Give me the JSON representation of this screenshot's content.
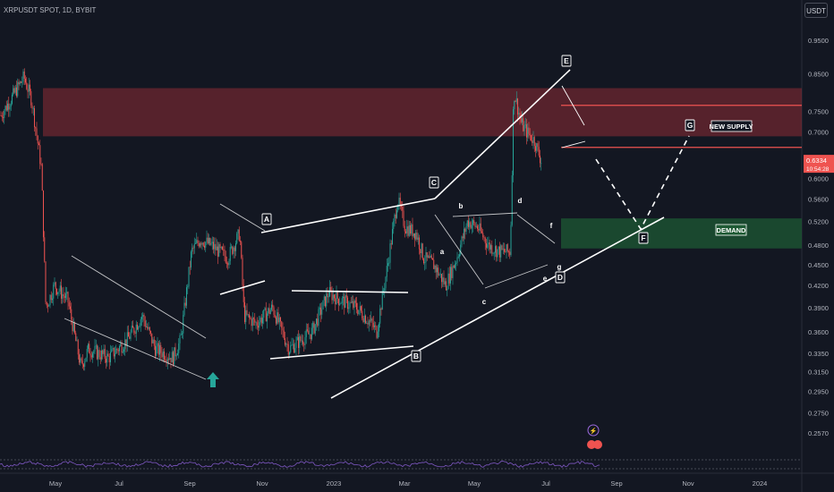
{
  "title": "XRPUSDT SPOT, 1D, BYBIT",
  "currency_label": "USDT",
  "price_badge": {
    "price": "0.6334",
    "countdown": "10:54:28"
  },
  "colors": {
    "bg": "#131722",
    "up": "#26a69a",
    "down": "#ef5350",
    "supply": "#8e2b35",
    "demand": "#1e5a34",
    "line": "#ffffff",
    "axis_text": "#b2b5be",
    "rsi": "#7e57c2"
  },
  "zones": {
    "supply_label": "NEW SUPPLY",
    "demand_label": "DEMAND"
  },
  "wave_labels": [
    "A",
    "B",
    "C",
    "D",
    "E",
    "F",
    "G",
    "a",
    "b",
    "c",
    "d",
    "e",
    "f",
    "g"
  ],
  "chart_data": {
    "type": "candlestick",
    "x_ticks": [
      "May",
      "Jul",
      "Sep",
      "Nov",
      "2023",
      "Mar",
      "May",
      "Jul",
      "Sep",
      "Nov",
      "2024"
    ],
    "y_ticks": [
      "0.9500",
      "0.8500",
      "0.7500",
      "0.7000",
      "0.6000",
      "0.5600",
      "0.5200",
      "0.4800",
      "0.4500",
      "0.4200",
      "0.3900",
      "0.3600",
      "0.3350",
      "0.3150",
      "0.2950",
      "0.2750",
      "0.2570"
    ],
    "scale": "log",
    "ylim": [
      0.24,
      1.0
    ],
    "last_price": 0.6334,
    "supply_zone": [
      0.69,
      0.81
    ],
    "new_supply_zone": [
      0.665,
      0.765
    ],
    "demand_zone": [
      0.475,
      0.525
    ],
    "close_path": [
      [
        "2022-04-01",
        0.74
      ],
      [
        "2022-04-10",
        0.78
      ],
      [
        "2022-04-22",
        0.84
      ],
      [
        "2022-04-29",
        0.78
      ],
      [
        "2022-05-08",
        0.62
      ],
      [
        "2022-05-12",
        0.39
      ],
      [
        "2022-05-20",
        0.42
      ],
      [
        "2022-06-01",
        0.4
      ],
      [
        "2022-06-13",
        0.32
      ],
      [
        "2022-06-20",
        0.34
      ],
      [
        "2022-07-08",
        0.33
      ],
      [
        "2022-07-25",
        0.35
      ],
      [
        "2022-08-08",
        0.38
      ],
      [
        "2022-08-20",
        0.34
      ],
      [
        "2022-09-05",
        0.33
      ],
      [
        "2022-09-12",
        0.35
      ],
      [
        "2022-09-22",
        0.47
      ],
      [
        "2022-09-30",
        0.49
      ],
      [
        "2022-10-10",
        0.48
      ],
      [
        "2022-10-25",
        0.46
      ],
      [
        "2022-11-05",
        0.5
      ],
      [
        "2022-11-09",
        0.38
      ],
      [
        "2022-11-20",
        0.37
      ],
      [
        "2022-12-05",
        0.39
      ],
      [
        "2022-12-20",
        0.34
      ],
      [
        "2023-01-10",
        0.36
      ],
      [
        "2023-01-25",
        0.41
      ],
      [
        "2023-02-05",
        0.4
      ],
      [
        "2023-02-20",
        0.39
      ],
      [
        "2023-03-05",
        0.37
      ],
      [
        "2023-03-10",
        0.36
      ],
      [
        "2023-03-20",
        0.45
      ],
      [
        "2023-03-29",
        0.56
      ],
      [
        "2023-04-05",
        0.51
      ],
      [
        "2023-04-15",
        0.5
      ],
      [
        "2023-04-22",
        0.46
      ],
      [
        "2023-05-01",
        0.45
      ],
      [
        "2023-05-12",
        0.42
      ],
      [
        "2023-05-22",
        0.46
      ],
      [
        "2023-06-01",
        0.52
      ],
      [
        "2023-06-10",
        0.51
      ],
      [
        "2023-06-20",
        0.48
      ],
      [
        "2023-06-30",
        0.47
      ],
      [
        "2023-07-10",
        0.47
      ],
      [
        "2023-07-13",
        0.8
      ],
      [
        "2023-07-15",
        0.78
      ],
      [
        "2023-07-20",
        0.72
      ],
      [
        "2023-07-25",
        0.7
      ],
      [
        "2023-08-01",
        0.68
      ],
      [
        "2023-08-08",
        0.63
      ]
    ],
    "projection": [
      [
        "2023-08-08",
        0.63
      ],
      [
        "2023-09-22",
        0.51
      ],
      [
        "2023-10-24",
        0.69
      ]
    ],
    "indicators": [
      "RSI"
    ]
  }
}
